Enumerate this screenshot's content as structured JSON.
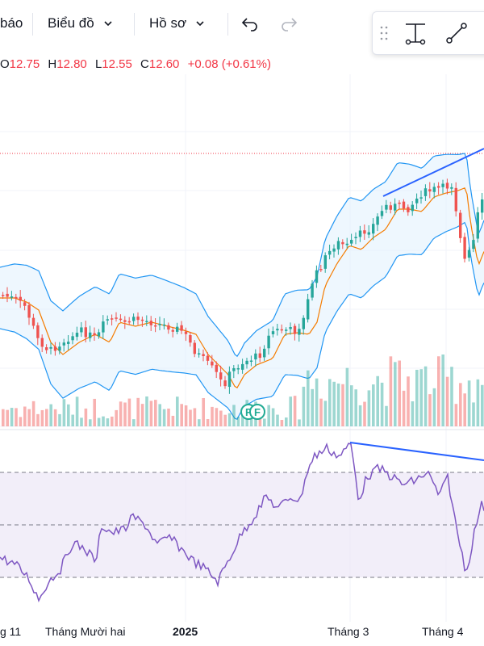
{
  "toolbar": {
    "alerts_label": "báo",
    "chart_label": "Biểu đồ",
    "profile_label": "Hồ sơ",
    "undo_icon": "undo-icon",
    "redo_icon": "redo-icon"
  },
  "drawing_tools": [
    "drag-handle-icon",
    "measure-icon",
    "trend-line-icon"
  ],
  "legend": {
    "o_label": "O",
    "o_value": "12.75",
    "h_label": "H",
    "h_value": "12.80",
    "l_label": "L",
    "l_value": "12.55",
    "c_label": "C",
    "c_value": "12.60",
    "change": "+0.08 (+0.61%)"
  },
  "colors": {
    "up": "#26a69a",
    "down": "#ef5350",
    "band": "#2196f3",
    "band_fill": "#e3f2fd",
    "basis": "#f57c00",
    "rsi": "#7e57c2",
    "rsi_fill": "#ede7f6",
    "trendline": "#2962ff"
  },
  "events": [
    {
      "label": "F"
    },
    {
      "label": "F"
    }
  ],
  "x_axis": {
    "labels": [
      {
        "text": "g 11",
        "bold": false
      },
      {
        "text": "Tháng Mười hai",
        "bold": false
      },
      {
        "text": "2025",
        "bold": true
      },
      {
        "text": "Tháng 3",
        "bold": false
      },
      {
        "text": "Tháng 4",
        "bold": false
      }
    ]
  }
}
